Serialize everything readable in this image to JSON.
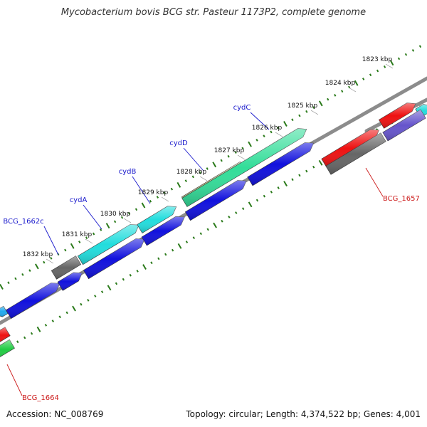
{
  "title": "Mycobacterium bovis BCG str. Pasteur 1173P2, complete genome",
  "footer": {
    "accession": "Accession: NC_008769",
    "summary": "Topology: circular; Length: 4,374,522 bp; Genes: 4,001"
  },
  "colors": {
    "backbone": "#8c8c8c",
    "ticks": "#2a7a1a",
    "gene_label_blue": "#1a1acc",
    "gene_label_red": "#cc1a1a",
    "tick_label": "#111111"
  },
  "tick_labels": [
    "1823 kbp",
    "1824 kbp",
    "1825 kbp",
    "1826 kbp",
    "1827 kbp",
    "1828 kbp",
    "1829 kbp",
    "1830 kbp",
    "1831 kbp",
    "1832 kbp"
  ],
  "gene_labels": [
    {
      "name": "cydC",
      "color": "blue"
    },
    {
      "name": "cydD",
      "color": "blue"
    },
    {
      "name": "cydB",
      "color": "blue"
    },
    {
      "name": "cydA",
      "color": "blue"
    },
    {
      "name": "BCG_1662c",
      "color": "blue"
    },
    {
      "name": "BCG_1657",
      "color": "red"
    },
    {
      "name": "BCG_1664",
      "color": "red"
    }
  ],
  "genes": [
    {
      "name": "cydC",
      "color": "#33dd99"
    },
    {
      "name": "cydD",
      "color": "#bbbb88"
    },
    {
      "name": "cydB",
      "color": "#22dddd"
    },
    {
      "name": "cydA",
      "color": "#22dddd"
    },
    {
      "name": "BCG_1662c",
      "color": "#666666"
    },
    {
      "name": "BCG_1657",
      "color": "#666666"
    },
    {
      "name": "BCG_1664",
      "color": "#22cc44"
    }
  ]
}
